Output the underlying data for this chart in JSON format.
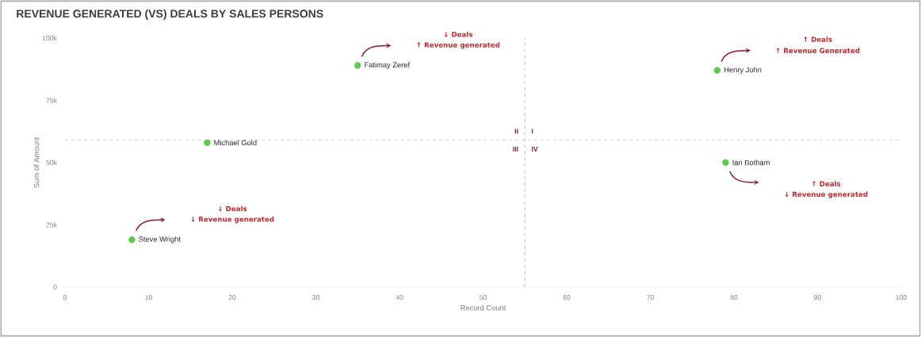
{
  "chart_data": {
    "type": "scatter",
    "title": "REVENUE GENERATED (VS) DEALS BY SALES PERSONS",
    "xlabel": "Record Count",
    "ylabel": "Sum of Amount",
    "series": [
      {
        "name": "Steve Wright",
        "color": "#5ccc4a",
        "x": [
          8
        ],
        "values": [
          19000
        ]
      },
      {
        "name": "Michael Gold",
        "color": "#5ccc4a",
        "x": [
          17
        ],
        "values": [
          58000
        ]
      },
      {
        "name": "Fatimay Zeref",
        "color": "#5ccc4a",
        "x": [
          35
        ],
        "values": [
          89000
        ]
      },
      {
        "name": "Henry John",
        "color": "#5ccc4a",
        "x": [
          78
        ],
        "values": [
          87000
        ]
      },
      {
        "name": "Ian Botham",
        "color": "#5ccc4a",
        "x": [
          79
        ],
        "values": [
          50000
        ]
      }
    ],
    "xlim": [
      0,
      100
    ],
    "xticks": [
      0,
      10,
      20,
      30,
      40,
      50,
      60,
      70,
      80,
      90,
      100
    ],
    "ylim": [
      0,
      100000
    ],
    "yticks": [
      {
        "value": 0,
        "label": "0"
      },
      {
        "value": 25000,
        "label": "25k"
      },
      {
        "value": 50000,
        "label": "50k"
      },
      {
        "value": 75000,
        "label": "75k"
      },
      {
        "value": 100000,
        "label": "100k"
      }
    ],
    "ref_lines": [
      {
        "axis": "x",
        "value": 55,
        "color": "#b0b0b0",
        "line_style": "dashed"
      },
      {
        "axis": "y",
        "value": 59000,
        "color": "#c8c8c8",
        "line_style": "dashed"
      }
    ],
    "annotations": [
      "I",
      "II",
      "III",
      "IV",
      "↓ Deals",
      "↓ Revenue generated",
      "↓ Deals",
      "↑ Revenue generated",
      "↑ Deals",
      "↑ Revenue Generated",
      "↑ Deals",
      "↓ Revenue generated"
    ]
  }
}
